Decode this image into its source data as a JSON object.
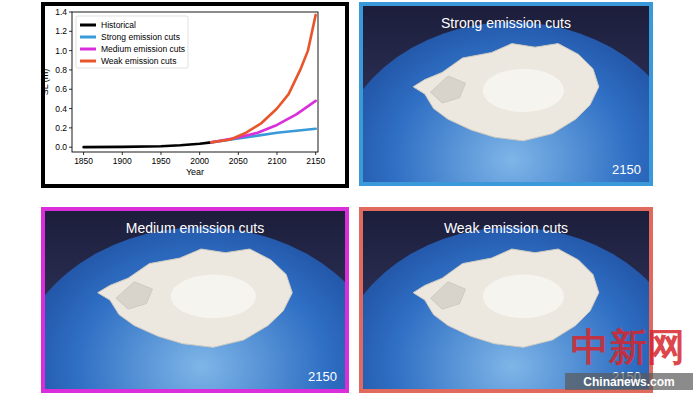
{
  "chart_data": {
    "type": "line",
    "x_label": "Year",
    "y_label": "SL (m)",
    "xlim": [
      1835,
      2153
    ],
    "ylim": [
      -0.05,
      1.4
    ],
    "xticks": [
      1850,
      1900,
      1950,
      2000,
      2050,
      2100,
      2150
    ],
    "yticks": [
      {
        "value": 0,
        "label": "0.0"
      },
      {
        "value": 0.2,
        "label": "0.2"
      },
      {
        "value": 0.4,
        "label": "0.4"
      },
      {
        "value": 0.6,
        "label": "0.6"
      },
      {
        "value": 0.8,
        "label": "0.8"
      },
      {
        "value": 1.0,
        "label": "1.0"
      },
      {
        "value": 1.2,
        "label": "1.2"
      },
      {
        "value": 1.4,
        "label": "1.4"
      }
    ],
    "grid": false,
    "legend": "upper-left",
    "series": [
      {
        "name": "Historical",
        "color": "#000000",
        "x": [
          1850,
          1900,
          1950,
          1975,
          2000,
          2015
        ],
        "values": [
          0,
          0.003,
          0.01,
          0.02,
          0.035,
          0.05
        ]
      },
      {
        "name": "Strong emission cuts",
        "color": "#3a9ad9",
        "x": [
          2015,
          2050,
          2075,
          2100,
          2125,
          2150
        ],
        "values": [
          0.05,
          0.09,
          0.12,
          0.15,
          0.17,
          0.19
        ]
      },
      {
        "name": "Medium emission cuts",
        "color": "#d92ed9",
        "x": [
          2015,
          2050,
          2075,
          2100,
          2125,
          2150
        ],
        "values": [
          0.05,
          0.1,
          0.15,
          0.23,
          0.34,
          0.48
        ]
      },
      {
        "name": "Weak emission cuts",
        "color": "#e8552a",
        "x": [
          2015,
          2040,
          2060,
          2080,
          2100,
          2115,
          2130,
          2140,
          2150
        ],
        "values": [
          0.05,
          0.08,
          0.15,
          0.25,
          0.4,
          0.55,
          0.8,
          1.0,
          1.37
        ]
      }
    ]
  },
  "panels": [
    {
      "title": "Strong emission cuts",
      "year": 2150,
      "color": "#3a9ad9"
    },
    {
      "title": "Medium emission cuts",
      "year": 2150,
      "color": "#d92ed9"
    },
    {
      "title": "Weak emission cuts",
      "year": 2150,
      "color": "#e06a5e"
    }
  ],
  "watermark": {
    "text": "中新网",
    "site": "Chinanews.com"
  }
}
